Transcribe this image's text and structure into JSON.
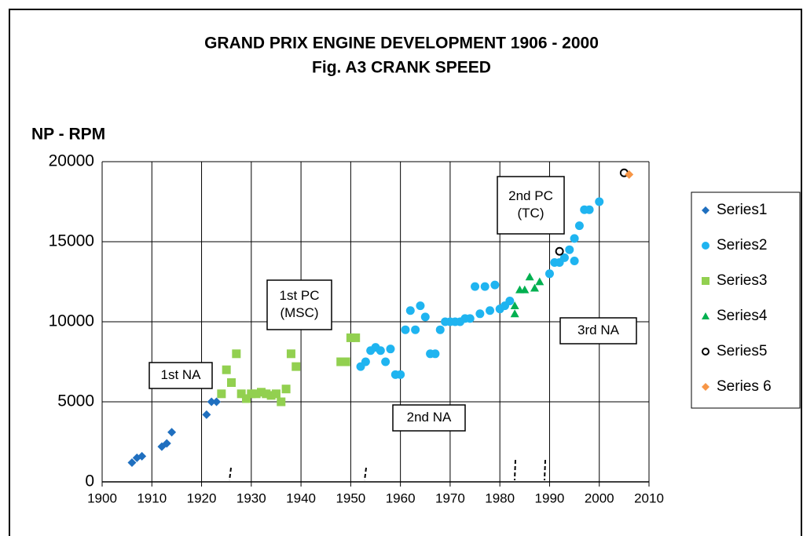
{
  "chart_data": {
    "type": "scatter",
    "title": "GRAND PRIX ENGINE DEVELOPMENT  1906 - 2000",
    "subtitle": "Fig. A3    CRANK SPEED",
    "y_label": "NP - RPM",
    "xlim": [
      1900,
      2010
    ],
    "xticks": [
      1900,
      1910,
      1920,
      1930,
      1940,
      1950,
      1960,
      1970,
      1980,
      1990,
      2000,
      2010
    ],
    "ylim": [
      0,
      20000
    ],
    "yticks": [
      0,
      5000,
      10000,
      15000,
      20000
    ],
    "grid": true,
    "legend": "right",
    "annotations": [
      {
        "lines": [
          "1st NA"
        ]
      },
      {
        "lines": [
          "1st PC",
          "(MSC)"
        ]
      },
      {
        "lines": [
          "2nd NA"
        ]
      },
      {
        "lines": [
          "2nd PC",
          "(TC)"
        ]
      },
      {
        "lines": [
          "3rd NA"
        ]
      }
    ],
    "series": [
      {
        "name": "Series1",
        "color": "#1f6fbf",
        "marker": "diamond",
        "x": [
          1906,
          1907,
          1908,
          1912,
          1913,
          1914,
          1921,
          1922,
          1923
        ],
        "values": [
          1200,
          1500,
          1600,
          2200,
          2400,
          3100,
          4200,
          5000,
          5000
        ]
      },
      {
        "name": "Series2",
        "color": "#1fb4f0",
        "marker": "circle",
        "x": [
          1952,
          1953,
          1954,
          1955,
          1956,
          1957,
          1958,
          1959,
          1960,
          1961,
          1962,
          1963,
          1964,
          1965,
          1966,
          1967,
          1968,
          1969,
          1970,
          1971,
          1972,
          1973,
          1974,
          1975,
          1976,
          1977,
          1978,
          1979,
          1980,
          1981,
          1982,
          1990,
          1991,
          1992,
          1993,
          1994,
          1995,
          1995,
          1996,
          1997,
          1998,
          2000
        ],
        "values": [
          7200,
          7500,
          8200,
          8400,
          8200,
          7500,
          8300,
          6700,
          6700,
          9500,
          10700,
          9500,
          11000,
          10300,
          8000,
          8000,
          9500,
          10000,
          10000,
          10000,
          10000,
          10200,
          10200,
          12200,
          10500,
          12200,
          10700,
          12300,
          10800,
          11000,
          11300,
          13000,
          13700,
          13700,
          14000,
          14500,
          13800,
          15200,
          16000,
          17000,
          17000,
          17500
        ]
      },
      {
        "name": "Series3",
        "color": "#92d050",
        "marker": "square",
        "x": [
          1924,
          1925,
          1926,
          1927,
          1928,
          1929,
          1930,
          1931,
          1932,
          1933,
          1934,
          1935,
          1936,
          1937,
          1938,
          1939,
          1948,
          1949,
          1950,
          1951
        ],
        "values": [
          5500,
          7000,
          6200,
          8000,
          5500,
          5200,
          5500,
          5500,
          5600,
          5500,
          5400,
          5500,
          5000,
          5800,
          8000,
          7200,
          7500,
          7500,
          9000,
          9000
        ]
      },
      {
        "name": "Series4",
        "color": "#00b050",
        "marker": "triangle",
        "x": [
          1983,
          1983,
          1984,
          1985,
          1986,
          1987,
          1988
        ],
        "values": [
          11000,
          10500,
          12000,
          12000,
          12800,
          12100,
          12500
        ]
      },
      {
        "name": "Series5",
        "color": "#000000",
        "marker": "ring",
        "x": [
          1992,
          2005
        ],
        "values": [
          14400,
          19300
        ]
      },
      {
        "name": "Series 6",
        "color": "#f79646",
        "marker": "diamond",
        "x": [
          2006
        ],
        "values": [
          19200
        ]
      }
    ]
  }
}
